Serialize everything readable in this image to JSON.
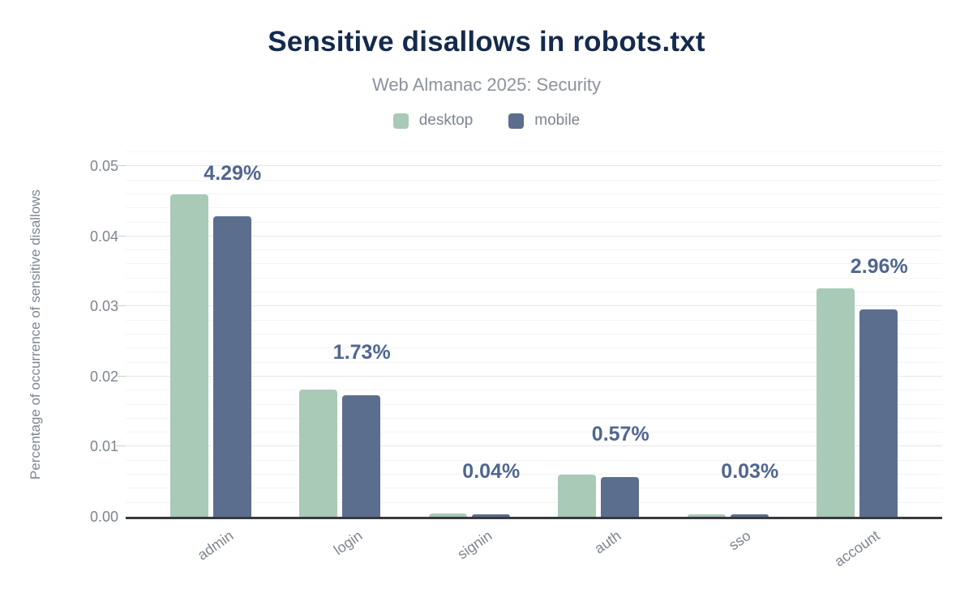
{
  "chart_data": {
    "type": "bar",
    "title": "Sensitive disallows in robots.txt",
    "subtitle": "Web Almanac 2025: Security",
    "xlabel": "",
    "ylabel": "Percentage of occurrence of sensitive disallows",
    "categories": [
      "admin",
      "login",
      "signin",
      "auth",
      "sso",
      "account"
    ],
    "series": [
      {
        "name": "desktop",
        "color": "#a8cab6",
        "values": [
          0.046,
          0.0181,
          0.0005,
          0.006,
          0.0003,
          0.0326
        ]
      },
      {
        "name": "mobile",
        "color": "#5c6e8e",
        "values": [
          0.0429,
          0.0173,
          0.0004,
          0.0057,
          0.0003,
          0.0296
        ]
      }
    ],
    "point_labels": {
      "labelled_series": "mobile",
      "values": [
        "4.29%",
        "1.73%",
        "0.04%",
        "0.57%",
        "0.03%",
        "2.96%"
      ]
    },
    "yaxis": {
      "min": 0,
      "max": 0.052,
      "major_tick": 0.01,
      "minor_tick": 0.002,
      "tick_labels": [
        "0.00",
        "0.01",
        "0.02",
        "0.03",
        "0.04",
        "0.05"
      ]
    },
    "legend_position": "top",
    "grid": true
  },
  "colors": {
    "title": "#142a4d",
    "subtitle": "#8c929c",
    "legend_text": "#7c8591",
    "axis_text": "#7d848e",
    "data_label": "#506690",
    "axis_line": "#37393f",
    "grid_major": "#e7e7e7",
    "grid_minor": "#f4f4f4",
    "tick_mark": "#c9cdd2"
  }
}
